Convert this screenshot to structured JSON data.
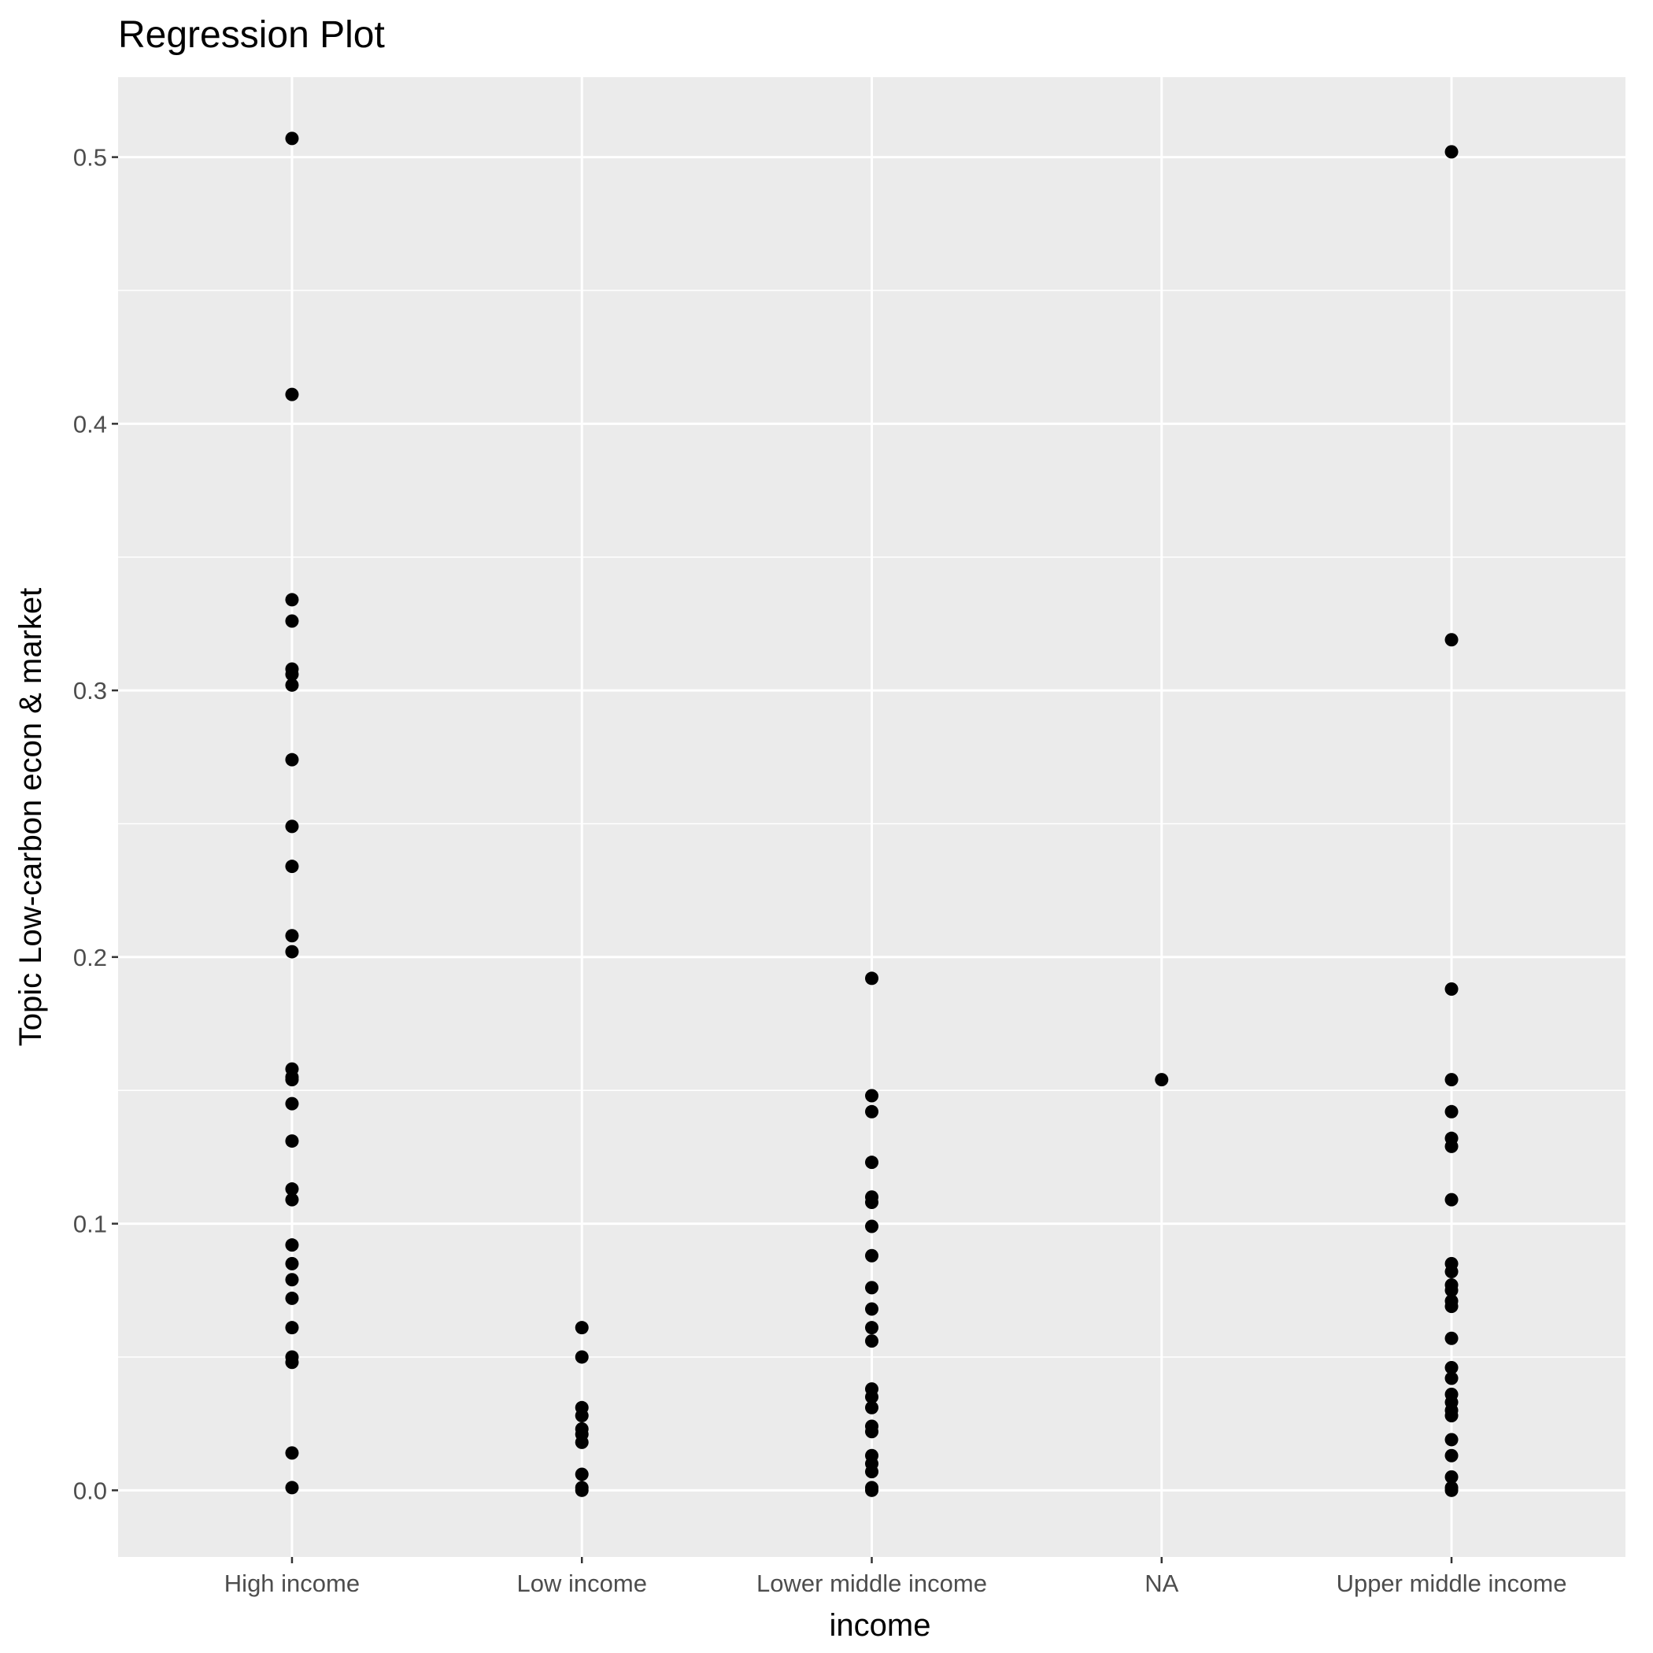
{
  "chart_data": {
    "type": "scatter",
    "title": "Regression Plot",
    "xlabel": "income",
    "ylabel": "Topic Low-carbon econ & market",
    "categories": [
      "High income",
      "Low income",
      "Lower middle income",
      "NA",
      "Upper middle income"
    ],
    "ylim": [
      -0.025,
      0.53
    ],
    "y_ticks": [
      0.0,
      0.1,
      0.2,
      0.3,
      0.4,
      0.5
    ],
    "y_tick_labels": [
      "0.0",
      "0.1",
      "0.2",
      "0.3",
      "0.4",
      "0.5"
    ],
    "grid": true,
    "legend": "none",
    "colors": {
      "panel": "#ebebeb",
      "grid": "#ffffff",
      "point": "#000000",
      "tick": "#333333",
      "tick_label": "#4d4d4d"
    },
    "series": [
      {
        "category": "High income",
        "values": [
          0.507,
          0.411,
          0.334,
          0.326,
          0.308,
          0.306,
          0.302,
          0.274,
          0.249,
          0.234,
          0.208,
          0.202,
          0.158,
          0.155,
          0.154,
          0.145,
          0.131,
          0.113,
          0.109,
          0.092,
          0.085,
          0.079,
          0.072,
          0.061,
          0.05,
          0.048,
          0.014,
          0.001
        ]
      },
      {
        "category": "Low income",
        "values": [
          0.061,
          0.05,
          0.031,
          0.028,
          0.023,
          0.021,
          0.018,
          0.006,
          0.001,
          0.0
        ]
      },
      {
        "category": "Lower middle income",
        "values": [
          0.192,
          0.148,
          0.142,
          0.123,
          0.11,
          0.108,
          0.099,
          0.088,
          0.076,
          0.068,
          0.061,
          0.056,
          0.038,
          0.035,
          0.031,
          0.024,
          0.022,
          0.013,
          0.01,
          0.007,
          0.001,
          0.0
        ]
      },
      {
        "category": "NA",
        "values": [
          0.154
        ]
      },
      {
        "category": "Upper middle income",
        "values": [
          0.502,
          0.319,
          0.188,
          0.154,
          0.142,
          0.132,
          0.129,
          0.109,
          0.085,
          0.082,
          0.077,
          0.075,
          0.071,
          0.069,
          0.057,
          0.046,
          0.042,
          0.036,
          0.033,
          0.03,
          0.028,
          0.019,
          0.013,
          0.005,
          0.001,
          0.0
        ]
      }
    ]
  }
}
